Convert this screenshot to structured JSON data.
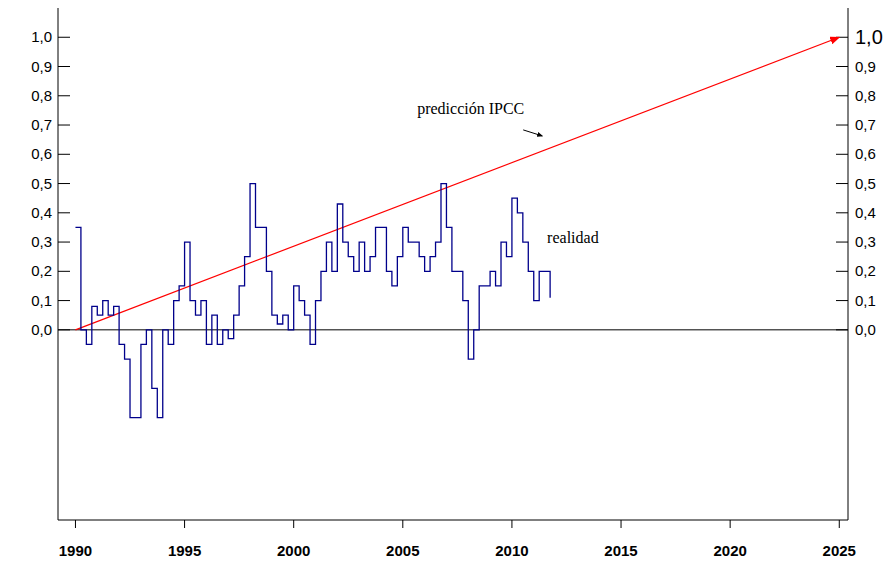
{
  "chart_data": {
    "type": "line",
    "xlim": [
      1989.2,
      2025.4
    ],
    "xticks": [
      1990,
      1995,
      2000,
      2005,
      2010,
      2015,
      2020,
      2025
    ],
    "ylim": [
      -0.65,
      1.1
    ],
    "yticks": [
      {
        "value": 0,
        "label": "0,0"
      },
      {
        "value": 0.1,
        "label": "0,1"
      },
      {
        "value": 0.2,
        "label": "0,2"
      },
      {
        "value": 0.3,
        "label": "0,3"
      },
      {
        "value": 0.4,
        "label": "0,4"
      },
      {
        "value": 0.5,
        "label": "0,5"
      },
      {
        "value": 0.6,
        "label": "0,6"
      },
      {
        "value": 0.7,
        "label": "0,7"
      },
      {
        "value": 0.8,
        "label": "0,8"
      },
      {
        "value": 0.9,
        "label": "0,9"
      },
      {
        "value": 1.0,
        "label": "1,0"
      }
    ],
    "grid": false,
    "series": [
      {
        "name": "predicción IPCC",
        "color": "#ff0000",
        "line_style": "arrow",
        "x": [
          1990,
          2025
        ],
        "values": [
          0,
          1.0
        ]
      },
      {
        "name": "realidad",
        "color": "#00008b",
        "line_style": "step",
        "x": [
          1990,
          1990.25,
          1990.5,
          1990.75,
          1991,
          1991.25,
          1991.5,
          1991.75,
          1992,
          1992.25,
          1992.5,
          1992.75,
          1993,
          1993.25,
          1993.5,
          1993.75,
          1994,
          1994.25,
          1994.5,
          1994.75,
          1995,
          1995.25,
          1995.5,
          1995.75,
          1996,
          1996.25,
          1996.5,
          1996.75,
          1997,
          1997.25,
          1997.5,
          1997.75,
          1998,
          1998.25,
          1998.5,
          1998.75,
          1999,
          1999.25,
          1999.5,
          1999.75,
          2000,
          2000.25,
          2000.5,
          2000.75,
          2001,
          2001.25,
          2001.5,
          2001.75,
          2002,
          2002.25,
          2002.5,
          2002.75,
          2003,
          2003.25,
          2003.5,
          2003.75,
          2004,
          2004.25,
          2004.5,
          2004.75,
          2005,
          2005.25,
          2005.5,
          2005.75,
          2006,
          2006.25,
          2006.5,
          2006.75,
          2007,
          2007.25,
          2007.5,
          2007.75,
          2008,
          2008.25,
          2008.5,
          2008.75,
          2009,
          2009.25,
          2009.5,
          2009.75,
          2010,
          2010.25,
          2010.5,
          2010.75,
          2011,
          2011.25,
          2011.5,
          2011.75
        ],
        "values": [
          0.35,
          0.0,
          -0.05,
          0.08,
          0.05,
          0.1,
          0.05,
          0.08,
          -0.05,
          -0.1,
          -0.3,
          -0.3,
          -0.05,
          0.0,
          -0.2,
          -0.3,
          0.0,
          -0.05,
          0.1,
          0.15,
          0.3,
          0.1,
          0.05,
          0.1,
          -0.05,
          0.05,
          -0.05,
          0.0,
          -0.03,
          0.05,
          0.15,
          0.25,
          0.5,
          0.35,
          0.35,
          0.2,
          0.05,
          0.02,
          0.05,
          0.0,
          0.15,
          0.1,
          0.05,
          -0.05,
          0.1,
          0.2,
          0.3,
          0.2,
          0.43,
          0.3,
          0.25,
          0.2,
          0.3,
          0.2,
          0.25,
          0.35,
          0.35,
          0.2,
          0.15,
          0.25,
          0.35,
          0.3,
          0.3,
          0.25,
          0.2,
          0.25,
          0.3,
          0.5,
          0.35,
          0.2,
          0.2,
          0.1,
          -0.1,
          0.0,
          0.15,
          0.15,
          0.2,
          0.15,
          0.3,
          0.25,
          0.45,
          0.4,
          0.3,
          0.2,
          0.1,
          0.2,
          0.2,
          0.11
        ]
      }
    ]
  }
}
